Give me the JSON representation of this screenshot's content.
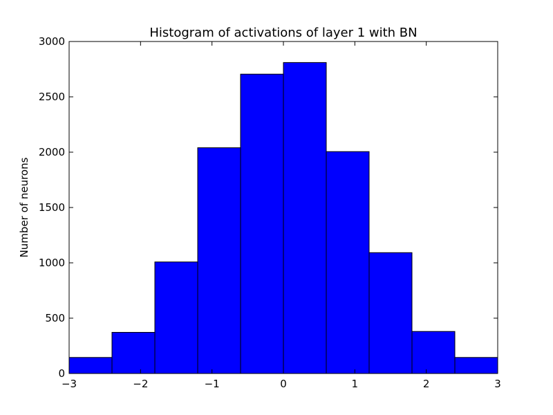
{
  "chart_data": {
    "type": "bar",
    "title": "Histogram of activations of layer 1  with BN",
    "xlabel": "",
    "ylabel": "Number of neurons",
    "xlim": [
      -3,
      3
    ],
    "ylim": [
      0,
      3000
    ],
    "bin_edges": [
      -3,
      -2.4,
      -1.8,
      -1.2,
      -0.6,
      0,
      0.6,
      1.2,
      1.8,
      2.4,
      3
    ],
    "values": [
      145,
      372,
      1008,
      2040,
      2705,
      2810,
      2005,
      1092,
      380,
      145
    ],
    "x_ticks": [
      {
        "value": -3,
        "label": "−3"
      },
      {
        "value": -2,
        "label": "−2"
      },
      {
        "value": -1,
        "label": "−1"
      },
      {
        "value": 0,
        "label": "0"
      },
      {
        "value": 1,
        "label": "1"
      },
      {
        "value": 2,
        "label": "2"
      },
      {
        "value": 3,
        "label": "3"
      }
    ],
    "y_ticks": [
      {
        "value": 0,
        "label": "0"
      },
      {
        "value": 500,
        "label": "500"
      },
      {
        "value": 1000,
        "label": "1000"
      },
      {
        "value": 1500,
        "label": "1500"
      },
      {
        "value": 2000,
        "label": "2000"
      },
      {
        "value": 2500,
        "label": "2500"
      },
      {
        "value": 3000,
        "label": "3000"
      }
    ],
    "bar_color": "#0000ff",
    "edge_color": "#000000",
    "grid": false
  }
}
